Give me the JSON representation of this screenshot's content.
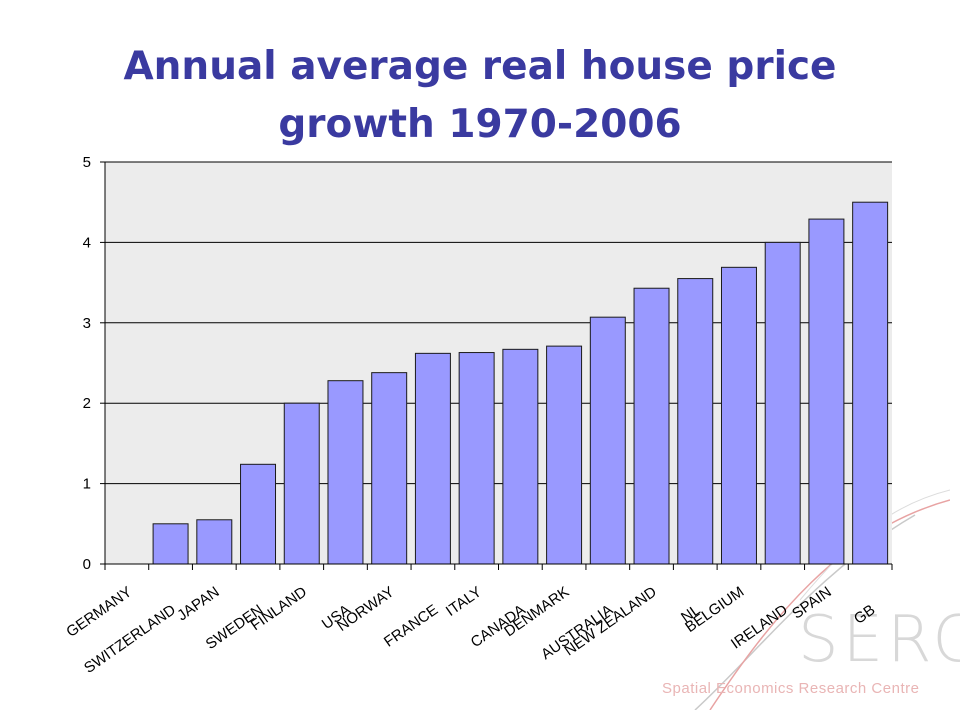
{
  "slide": {
    "title_line1": "Annual average real house price",
    "title_line2": "growth 1970-2006"
  },
  "logo": {
    "text": "SERC",
    "tagline": "Spatial Economics Research Centre"
  },
  "colors": {
    "title": "#3a3aa0",
    "bar_fill": "#9999ff",
    "bar_stroke": "#1a1a1a",
    "plot_background": "#ececec",
    "gridline": "#000000"
  },
  "chart_data": {
    "type": "bar",
    "title": "Annual average real house price growth 1970-2006",
    "xlabel": "",
    "ylabel": "",
    "ylim": [
      0,
      5
    ],
    "yticks": [
      0,
      1,
      2,
      3,
      4,
      5
    ],
    "grid": true,
    "legend": "none",
    "categories": [
      "GERMANY",
      "SWITZERLAND",
      "JAPAN",
      "SWEDEN",
      "FINLAND",
      "USA",
      "NORWAY",
      "FRANCE",
      "ITALY",
      "CANADA",
      "DENMARK",
      "AUSTRALIA",
      "NEW ZEALAND",
      "NL",
      "BELGIUM",
      "IRELAND",
      "SPAIN",
      "GB"
    ],
    "values": [
      0.0,
      0.5,
      0.55,
      1.24,
      2.0,
      2.28,
      2.38,
      2.62,
      2.63,
      2.67,
      2.71,
      3.07,
      3.43,
      3.55,
      3.69,
      4.0,
      4.29,
      4.5
    ]
  }
}
